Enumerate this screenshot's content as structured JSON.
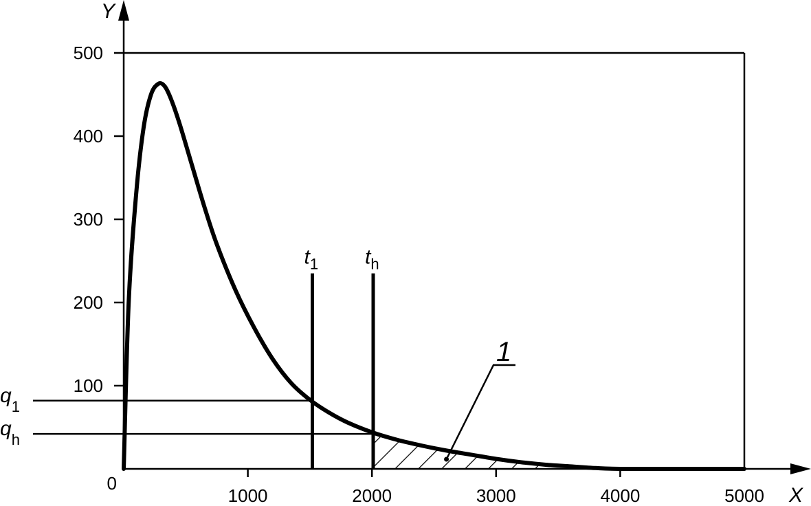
{
  "chart_data": {
    "type": "line",
    "xlabel": "X",
    "ylabel": "Y",
    "origin_label": "0",
    "xlim": [
      0,
      5000
    ],
    "ylim": [
      0,
      500
    ],
    "x_ticks": [
      1000,
      2000,
      3000,
      4000,
      5000
    ],
    "x_tick_labels": [
      "1000",
      "2000",
      "3000",
      "4000",
      "5000"
    ],
    "y_ticks": [
      100,
      200,
      300,
      400,
      500
    ],
    "y_tick_labels": [
      "100",
      "200",
      "300",
      "400",
      "500"
    ],
    "grid": false,
    "series": [
      {
        "x": [
          0,
          40,
          100,
          160,
          220,
          280,
          330,
          380,
          450,
          550,
          650,
          750,
          900,
          1050,
          1200,
          1350,
          1500,
          1650,
          1800,
          2000,
          2200,
          2400,
          2600,
          2800,
          3000,
          3200,
          3400,
          3600,
          3800,
          4000,
          4500,
          5000
        ],
        "y": [
          0,
          200,
          330,
          410,
          450,
          463,
          460,
          445,
          415,
          365,
          315,
          270,
          215,
          170,
          132,
          103,
          83,
          68,
          56,
          44,
          35,
          28,
          22,
          17,
          12,
          8,
          5,
          3,
          1,
          0,
          0,
          0
        ]
      }
    ],
    "markers": [
      {
        "label": "t",
        "subscript": "1",
        "x": 1520,
        "y_top": 235
      },
      {
        "label": "t",
        "subscript": "h",
        "x": 2010,
        "y_top": 235
      }
    ],
    "reference_lines": [
      {
        "label": "q",
        "subscript": "1",
        "y": 82
      },
      {
        "label": "q",
        "subscript": "h",
        "y": 42
      }
    ],
    "shaded_region": {
      "x_start": 2010,
      "x_end": 3500,
      "pattern": "hatch"
    },
    "annotations": [
      {
        "text": "1",
        "target_x": 2600,
        "target_y": 10
      }
    ]
  }
}
